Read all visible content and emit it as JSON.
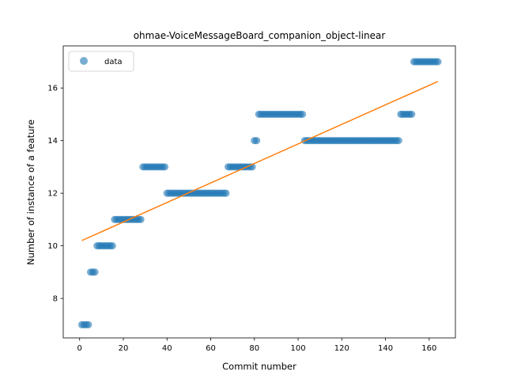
{
  "chart_data": {
    "type": "scatter",
    "title": "ohmae-VoiceMessageBoard_companion_object-linear",
    "xlabel": "Commit number",
    "ylabel": "Number of instance of a feature",
    "xlim": [
      -7.5,
      172
    ],
    "ylim": [
      6.5,
      17.6
    ],
    "xticks": [
      0,
      20,
      40,
      60,
      80,
      100,
      120,
      140,
      160
    ],
    "yticks": [
      8,
      10,
      12,
      14,
      16
    ],
    "grid": false,
    "legend": {
      "position": "top-left",
      "entries": [
        "data"
      ]
    },
    "colors": {
      "data": "#1f77b4",
      "fit": "#ff7f0e"
    },
    "series": [
      {
        "name": "data",
        "kind": "scatter",
        "segments": [
          {
            "x_start": 1,
            "x_end": 4,
            "y": 7
          },
          {
            "x_start": 5,
            "x_end": 7,
            "y": 9
          },
          {
            "x_start": 8,
            "x_end": 15,
            "y": 10
          },
          {
            "x_start": 16,
            "x_end": 28,
            "y": 11
          },
          {
            "x_start": 29,
            "x_end": 39,
            "y": 13
          },
          {
            "x_start": 40,
            "x_end": 67,
            "y": 12
          },
          {
            "x_start": 68,
            "x_end": 79,
            "y": 13
          },
          {
            "x_start": 80,
            "x_end": 81,
            "y": 14
          },
          {
            "x_start": 82,
            "x_end": 102,
            "y": 15
          },
          {
            "x_start": 103,
            "x_end": 146,
            "y": 14
          },
          {
            "x_start": 147,
            "x_end": 152,
            "y": 15
          },
          {
            "x_start": 153,
            "x_end": 164,
            "y": 17
          }
        ]
      },
      {
        "kind": "line",
        "x": [
          1,
          164
        ],
        "y": [
          10.2,
          16.25
        ]
      }
    ]
  }
}
